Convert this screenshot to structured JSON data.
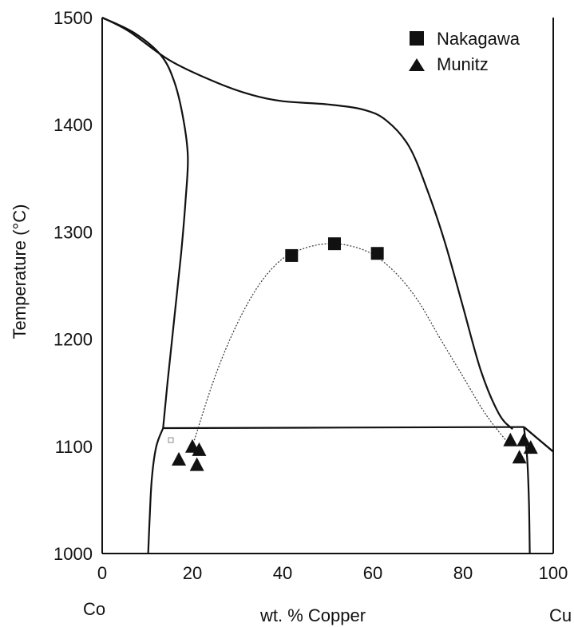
{
  "chart_data": {
    "type": "scatter",
    "title": "",
    "xlabel": "wt. % Copper",
    "ylabel": "Temperature (°C)",
    "xlim": [
      0,
      100
    ],
    "ylim": [
      1000,
      1500
    ],
    "x_ticks": [
      "0",
      "20",
      "40",
      "60",
      "80",
      "100"
    ],
    "y_ticks": [
      "1000",
      "1100",
      "1200",
      "1300",
      "1400",
      "1500"
    ],
    "x_end_labels": {
      "left": "Co",
      "right": "Cu"
    },
    "grid": false,
    "legend": {
      "position": "top-right",
      "entries": [
        "Nakagawa",
        "Munitz"
      ]
    },
    "series": [
      {
        "name": "Nakagawa",
        "marker": "square",
        "points": [
          [
            42,
            1278
          ],
          [
            51.5,
            1289
          ],
          [
            61,
            1280
          ]
        ]
      },
      {
        "name": "Munitz",
        "marker": "triangle",
        "points": [
          [
            17,
            1088
          ],
          [
            20,
            1100
          ],
          [
            21.5,
            1097
          ],
          [
            21,
            1083
          ],
          [
            90.5,
            1106
          ],
          [
            93.5,
            1106
          ],
          [
            95,
            1099
          ],
          [
            92.5,
            1090
          ]
        ]
      }
    ],
    "phase_boundaries": [
      {
        "name": "liquidus",
        "points": [
          [
            0,
            1500
          ],
          [
            6,
            1487
          ],
          [
            15,
            1460
          ],
          [
            25,
            1440
          ],
          [
            33,
            1428
          ],
          [
            40,
            1422
          ],
          [
            50,
            1419
          ],
          [
            58,
            1414
          ],
          [
            63,
            1404
          ],
          [
            68,
            1380
          ],
          [
            72,
            1340
          ],
          [
            76,
            1290
          ],
          [
            80,
            1230
          ],
          [
            84,
            1170
          ],
          [
            88,
            1130
          ],
          [
            91,
            1116
          ]
        ]
      },
      {
        "name": "solidus",
        "points": [
          [
            0,
            1500
          ],
          [
            7,
            1486
          ],
          [
            13,
            1465
          ],
          [
            16,
            1440
          ],
          [
            18,
            1405
          ],
          [
            19,
            1370
          ],
          [
            18.5,
            1330
          ],
          [
            17.5,
            1280
          ],
          [
            16,
            1220
          ],
          [
            14.5,
            1160
          ],
          [
            13.5,
            1117
          ]
        ]
      },
      {
        "name": "peritectic",
        "points": [
          [
            13.5,
            1117
          ],
          [
            93.5,
            1118
          ]
        ]
      },
      {
        "name": "co-solvus",
        "points": [
          [
            13.5,
            1117
          ],
          [
            12,
            1100
          ],
          [
            11,
            1070
          ],
          [
            10.5,
            1030
          ],
          [
            10.2,
            1000
          ]
        ]
      },
      {
        "name": "cu-solvus",
        "points": [
          [
            93.5,
            1118
          ],
          [
            94.2,
            1090
          ],
          [
            94.6,
            1050
          ],
          [
            94.8,
            1000
          ]
        ]
      },
      {
        "name": "cu-liquidus",
        "points": [
          [
            93.5,
            1118
          ],
          [
            100,
            1095
          ]
        ]
      },
      {
        "name": "cu-solidus",
        "points": [
          [
            93.5,
            1118
          ],
          [
            100,
            1095
          ]
        ]
      }
    ],
    "fit_curve": {
      "name": "miscibility-gap-fit",
      "points": [
        [
          20,
          1100
        ],
        [
          25,
          1165
        ],
        [
          30,
          1215
        ],
        [
          35,
          1252
        ],
        [
          40,
          1275
        ],
        [
          45,
          1285
        ],
        [
          50,
          1289
        ],
        [
          55,
          1287
        ],
        [
          60,
          1279
        ],
        [
          65,
          1262
        ],
        [
          70,
          1236
        ],
        [
          75,
          1200
        ],
        [
          80,
          1165
        ],
        [
          85,
          1130
        ],
        [
          90,
          1103
        ]
      ]
    }
  }
}
